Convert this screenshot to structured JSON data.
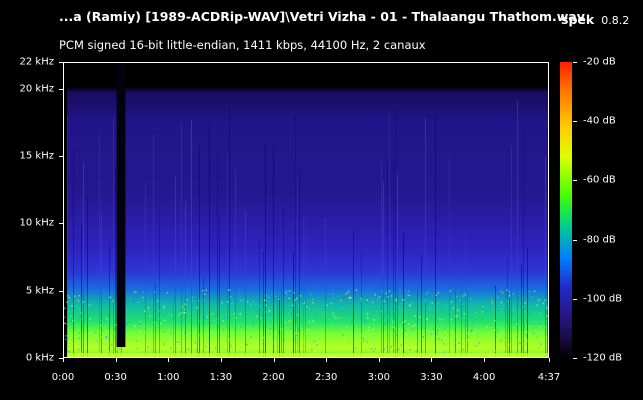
{
  "window": {
    "title": "...a (Ramiy) [1989-ACDRip-WAV]\\Vetri Vizha - 01 - Thalaangu Thathom.wav",
    "app_name": "spek",
    "app_version": "0.8.2",
    "file_info": "PCM signed 16-bit little-endian, 1411 kbps, 44100 Hz, 2 canaux"
  },
  "spectrogram": {
    "y_axis": {
      "ticks": [
        {
          "label": "22 kHz",
          "value": 22
        },
        {
          "label": "20 kHz",
          "value": 20
        },
        {
          "label": "15 kHz",
          "value": 15
        },
        {
          "label": "10 kHz",
          "value": 10
        },
        {
          "label": "5 kHz",
          "value": 5
        },
        {
          "label": "0 kHz",
          "value": 0
        }
      ],
      "max": 22
    },
    "x_axis": {
      "ticks": [
        {
          "label": "0:00",
          "seconds": 0
        },
        {
          "label": "0:30",
          "seconds": 30
        },
        {
          "label": "1:00",
          "seconds": 60
        },
        {
          "label": "1:30",
          "seconds": 90
        },
        {
          "label": "2:00",
          "seconds": 120
        },
        {
          "label": "2:30",
          "seconds": 150
        },
        {
          "label": "3:00",
          "seconds": 180
        },
        {
          "label": "3:30",
          "seconds": 210
        },
        {
          "label": "4:00",
          "seconds": 240
        },
        {
          "label": "4:37",
          "seconds": 277
        }
      ],
      "max_seconds": 277
    },
    "gap": {
      "start_seconds": 30,
      "end_seconds": 35
    },
    "colorbar": {
      "ticks": [
        {
          "label": "-20 dB",
          "value": -20
        },
        {
          "label": "-40 dB",
          "value": -40
        },
        {
          "label": "-60 dB",
          "value": -60
        },
        {
          "label": "-80 dB",
          "value": -80
        },
        {
          "label": "-100 dB",
          "value": -100
        },
        {
          "label": "-120 dB",
          "value": -120
        }
      ],
      "min": -120,
      "max": -20
    }
  }
}
